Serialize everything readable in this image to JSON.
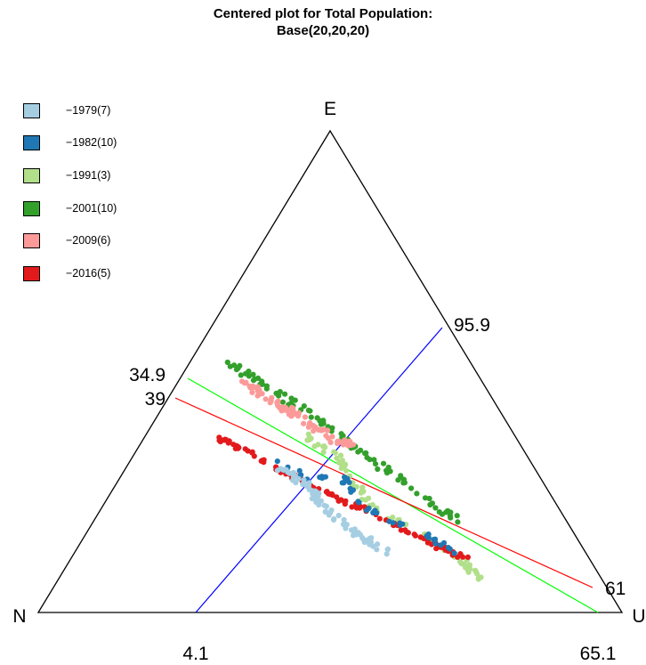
{
  "chart_data": {
    "type": "scatter",
    "subtype": "ternary",
    "title_line1": "Centered plot for Total Population:",
    "title_line2": "Base(20,20,20)",
    "vertices": {
      "top": "E",
      "left": "N",
      "right": "U"
    },
    "axis_labels": {
      "left_edge": [
        "34.9",
        "39"
      ],
      "right_edge": [
        "95.9",
        "61"
      ],
      "bottom_edge": [
        "4.1",
        "65.1"
      ]
    },
    "reference_lines": [
      {
        "color": "#0000ff",
        "from": "4.1",
        "to": "95.9"
      },
      {
        "color": "#00ff00",
        "from": "34.9",
        "to": "65.1"
      },
      {
        "color": "#ff0000",
        "from": "39",
        "to": "61"
      }
    ],
    "legend": {
      "position": "top-left"
    },
    "series": [
      {
        "name": "−1979(7)",
        "color": "#a6cee3"
      },
      {
        "name": "−1982(10)",
        "color": "#1f78b4"
      },
      {
        "name": "−1991(3)",
        "color": "#b2df8a"
      },
      {
        "name": "−2001(10)",
        "color": "#33a02c"
      },
      {
        "name": "−2009(6)",
        "color": "#fb9a99"
      },
      {
        "name": "−2016(5)",
        "color": "#e31a1c"
      }
    ]
  }
}
